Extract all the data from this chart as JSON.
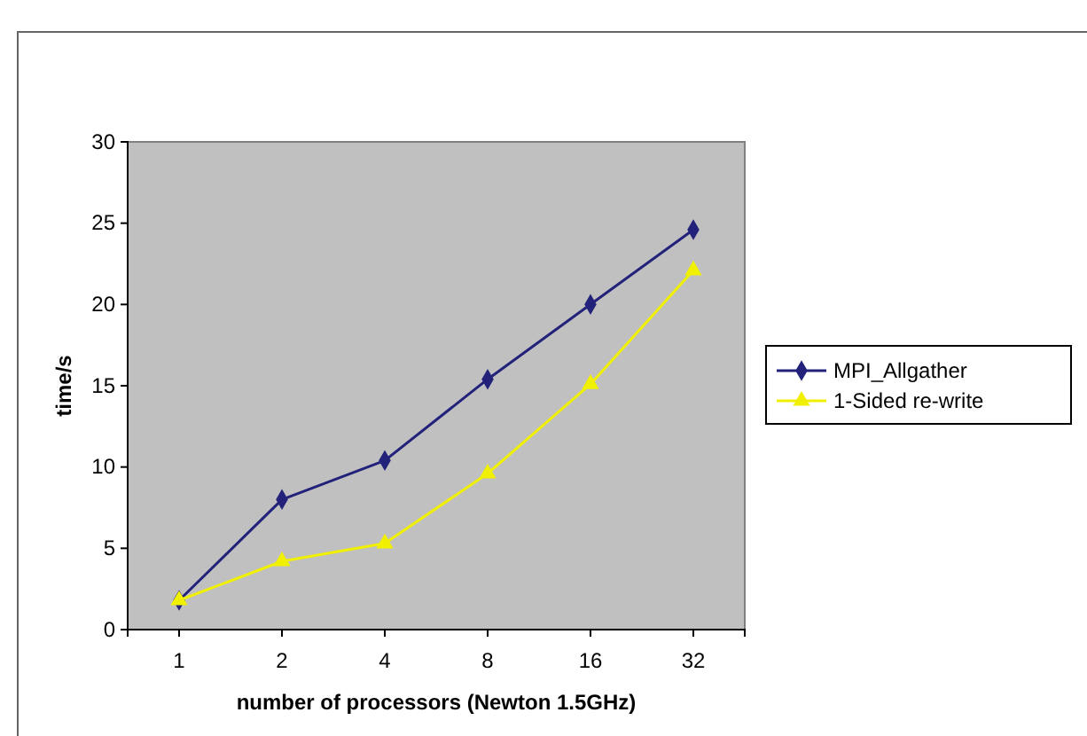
{
  "chart_data": {
    "type": "line",
    "xlabel": "number of processors (Newton 1.5GHz)",
    "ylabel": "time/s",
    "categories": [
      "1",
      "2",
      "4",
      "8",
      "16",
      "32"
    ],
    "ylim": [
      0,
      30
    ],
    "yticks": [
      0,
      5,
      10,
      15,
      20,
      25,
      30
    ],
    "legend": "right",
    "series": [
      {
        "name": "MPI_Allgather",
        "color": "#22227a",
        "marker": "diamond",
        "values": [
          1.8,
          8,
          10.4,
          15.4,
          20,
          24.6
        ]
      },
      {
        "name": "1-Sided re-write",
        "color": "#f0f000",
        "marker": "triangle",
        "values": [
          1.8,
          4.2,
          5.3,
          9.6,
          15.1,
          22.1
        ]
      }
    ]
  }
}
